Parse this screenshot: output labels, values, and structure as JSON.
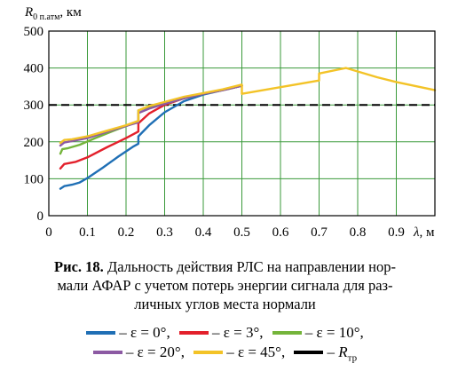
{
  "chart_data": {
    "type": "line",
    "title": "",
    "y_axis_label": {
      "symbol": "R",
      "subscript": "0 п.атм",
      "unit": ", км"
    },
    "x_axis_label": {
      "symbol": "λ",
      "unit": ", м"
    },
    "xlim": [
      0,
      1.0
    ],
    "ylim": [
      0,
      500
    ],
    "x_ticks": [
      0,
      0.1,
      0.2,
      0.3,
      0.4,
      0.5,
      0.6,
      0.7,
      0.8,
      0.9
    ],
    "x_tick_labels": [
      "0",
      "0.1",
      "0.2",
      "0.3",
      "0.4",
      "0.5",
      "0.6",
      "0.7",
      "0.8",
      "0.9"
    ],
    "y_ticks": [
      0,
      100,
      200,
      300,
      400,
      500
    ],
    "y_tick_labels": [
      "0",
      "100",
      "200",
      "300",
      "400",
      "500"
    ],
    "grid": true,
    "series": [
      {
        "name": "ε = 0°",
        "color": "#1f6fb5",
        "x": [
          0.03,
          0.04,
          0.06,
          0.08,
          0.1,
          0.14,
          0.18,
          0.22,
          0.232,
          0.232,
          0.26,
          0.3,
          0.35,
          0.4,
          0.45,
          0.5
        ],
        "y": [
          73,
          80,
          84,
          90,
          102,
          130,
          160,
          188,
          195,
          215,
          245,
          280,
          310,
          328,
          340,
          352
        ]
      },
      {
        "name": "ε = 3°",
        "color": "#e3202b",
        "x": [
          0.03,
          0.04,
          0.07,
          0.1,
          0.15,
          0.2,
          0.232,
          0.232,
          0.26,
          0.3,
          0.35,
          0.4,
          0.45,
          0.5
        ],
        "y": [
          128,
          140,
          146,
          158,
          185,
          210,
          228,
          250,
          277,
          300,
          318,
          330,
          340,
          352
        ]
      },
      {
        "name": "ε = 10°",
        "color": "#74b43a",
        "x": [
          0.03,
          0.035,
          0.05,
          0.08,
          0.12,
          0.18,
          0.232,
          0.232,
          0.26,
          0.3,
          0.35,
          0.4,
          0.45,
          0.5
        ],
        "y": [
          168,
          180,
          183,
          192,
          210,
          235,
          255,
          285,
          295,
          303,
          318,
          330,
          340,
          352
        ]
      },
      {
        "name": "ε = 20°",
        "color": "#8c5aa3",
        "x": [
          0.03,
          0.04,
          0.06,
          0.1,
          0.15,
          0.2,
          0.232,
          0.232,
          0.26,
          0.3,
          0.35,
          0.4,
          0.45,
          0.5
        ],
        "y": [
          190,
          198,
          202,
          210,
          227,
          243,
          253,
          278,
          290,
          303,
          318,
          330,
          340,
          352
        ]
      },
      {
        "name": "ε = 45°",
        "color": "#f3c327",
        "x": [
          0.03,
          0.04,
          0.06,
          0.1,
          0.15,
          0.2,
          0.232,
          0.232,
          0.26,
          0.3,
          0.35,
          0.4,
          0.45,
          0.5,
          0.5,
          0.6,
          0.7,
          0.7,
          0.77,
          0.85,
          0.9,
          1.0
        ],
        "y": [
          197,
          205,
          207,
          215,
          230,
          245,
          257,
          285,
          297,
          308,
          322,
          332,
          342,
          355,
          330,
          348,
          366,
          385,
          400,
          375,
          362,
          340
        ]
      },
      {
        "name": "R тр",
        "color": "#000000",
        "style": "dashed",
        "x": [
          0,
          1.0
        ],
        "y": [
          300,
          300
        ]
      }
    ]
  },
  "caption": {
    "number": "Рис. 18.",
    "text": "Дальность действия РЛС на направлении нормали АФАР с учетом потерь энергии сигнала для различных углов места нормали",
    "lines": [
      "Дальность действия РЛС на направлении нор-",
      "мали АФАР с учетом потерь энергии сигнала для раз-",
      "личных углов места нормали"
    ]
  },
  "legend": {
    "rows": [
      [
        {
          "prefix": "– ",
          "label": "ε = 0°,",
          "color": "#1f6fb5"
        },
        {
          "prefix": "– ",
          "label": "ε = 3°,",
          "color": "#e3202b"
        },
        {
          "prefix": "– ",
          "label": "ε = 10°,",
          "color": "#74b43a"
        }
      ],
      [
        {
          "prefix": "– ",
          "label": "ε = 20°,",
          "color": "#8c5aa3"
        },
        {
          "prefix": "– ",
          "label": "ε = 45°,",
          "color": "#f3c327"
        },
        {
          "prefix": "– ",
          "symbol": "R",
          "subscript": "тр",
          "color": "#000000"
        }
      ]
    ]
  }
}
